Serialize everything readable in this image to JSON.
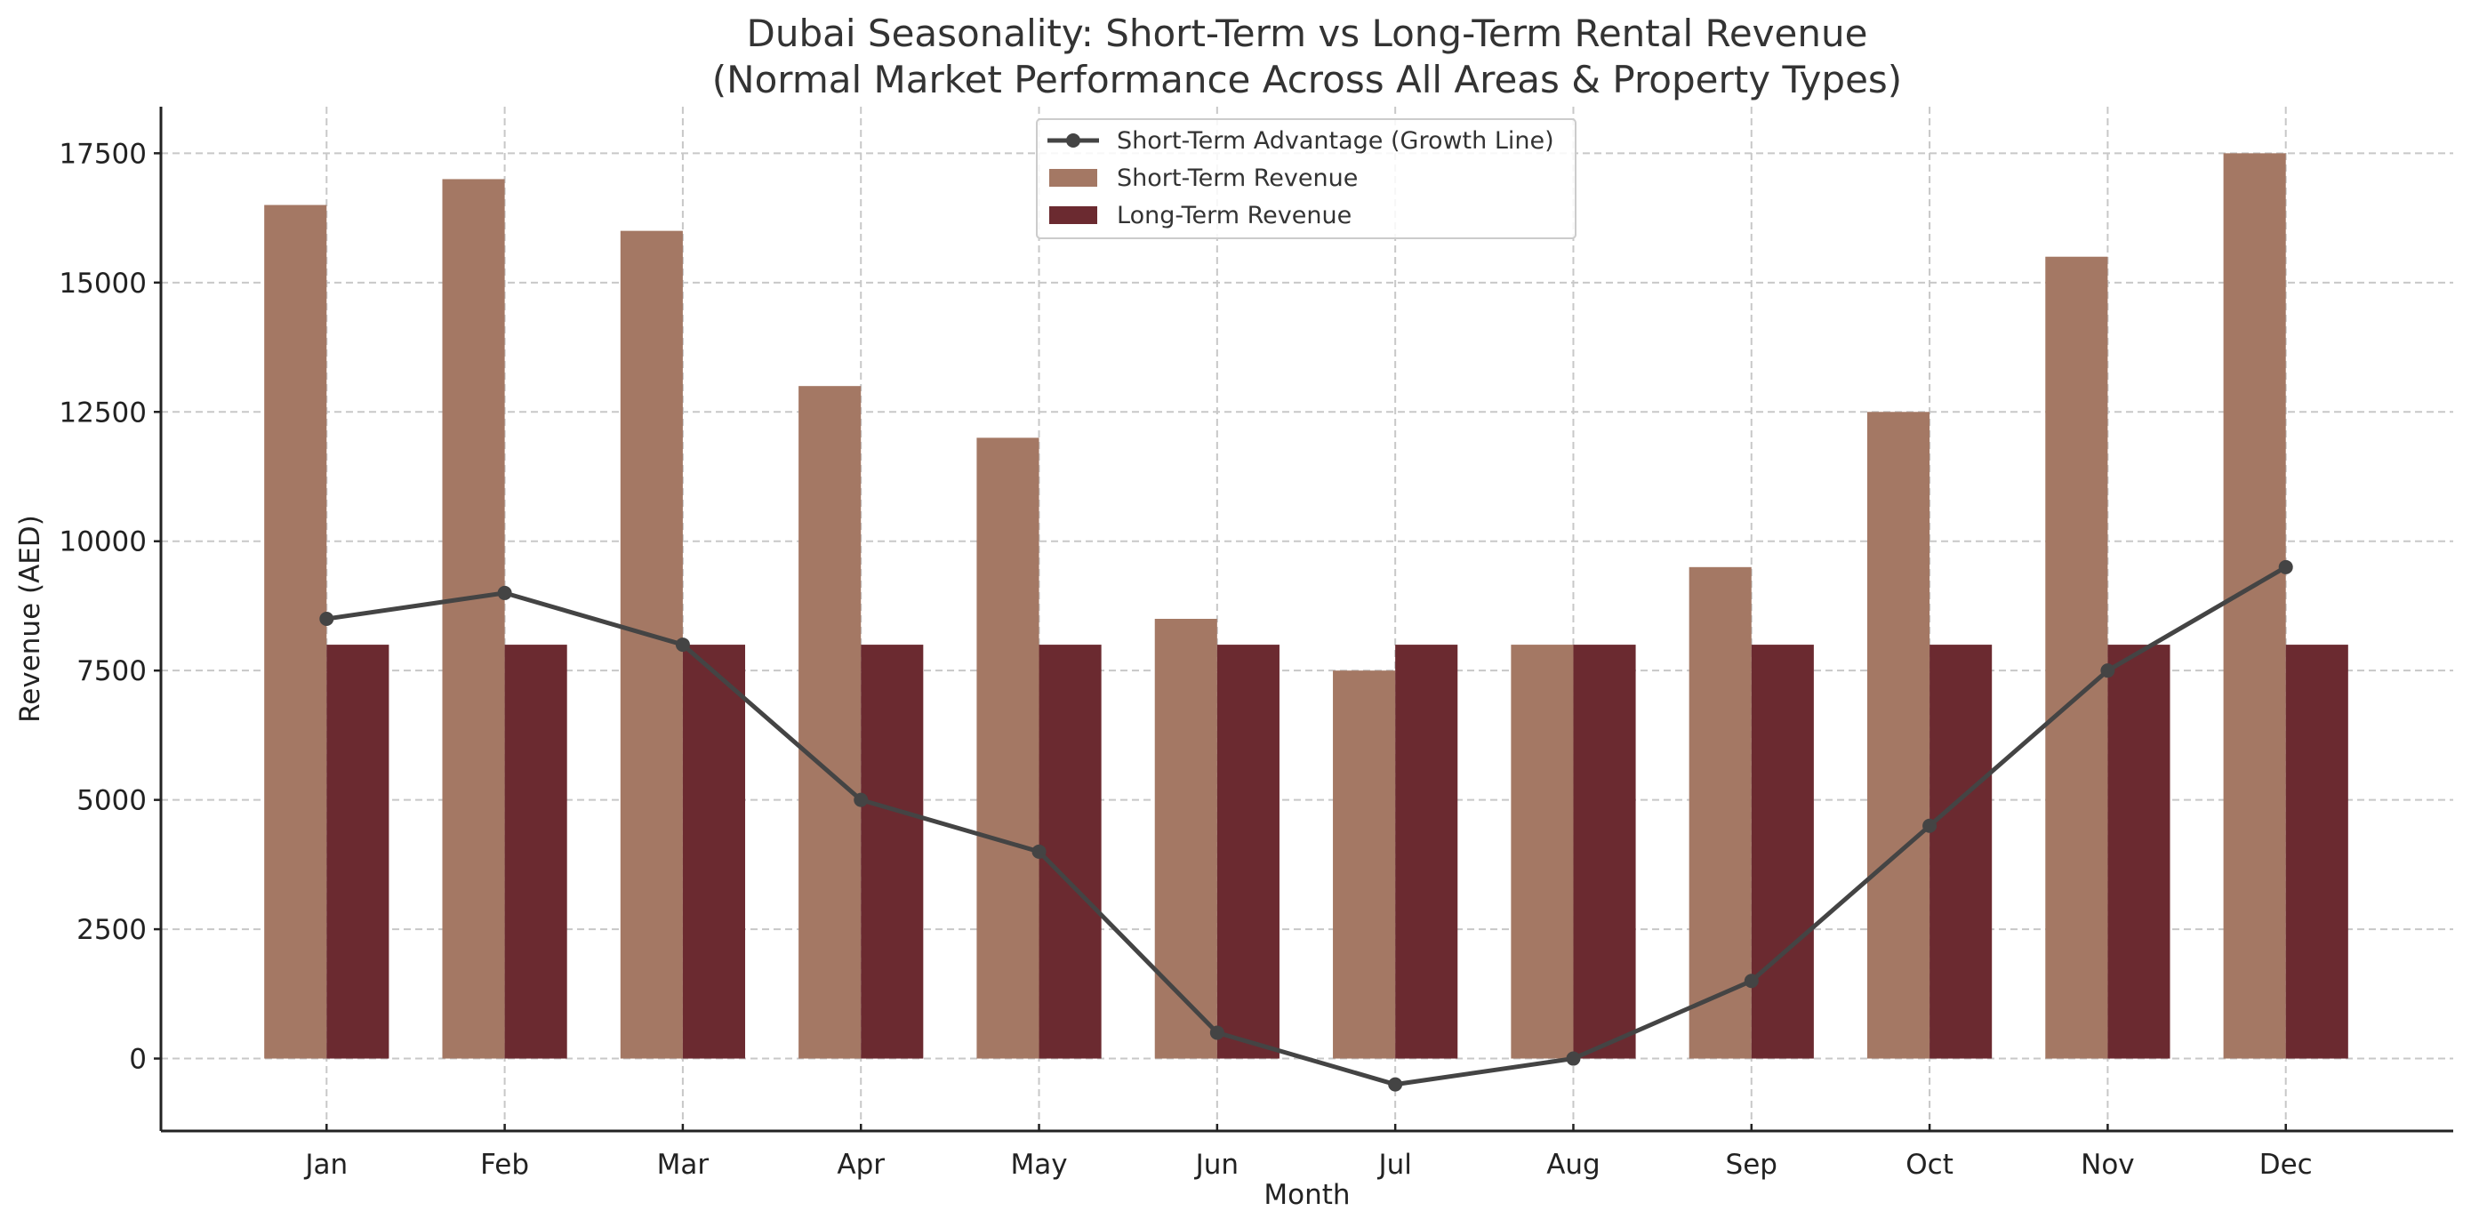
{
  "chart_data": {
    "type": "bar",
    "title_line1": "Dubai Seasonality: Short-Term vs Long-Term Rental Revenue",
    "title_line2": "(Normal Market Performance Across All Areas & Property Types)",
    "xlabel": "Month",
    "ylabel": "Revenue (AED)",
    "categories": [
      "Jan",
      "Feb",
      "Mar",
      "Apr",
      "May",
      "Jun",
      "Jul",
      "Aug",
      "Sep",
      "Oct",
      "Nov",
      "Dec"
    ],
    "ylim": [
      -1400,
      18400
    ],
    "yticks": [
      0,
      2500,
      5000,
      7500,
      10000,
      12500,
      15000,
      17500
    ],
    "grid": true,
    "legend_position": "top-center",
    "series": [
      {
        "name": "Short-Term Revenue",
        "kind": "bar",
        "color": "#a47864",
        "values": [
          16500,
          17000,
          16000,
          13000,
          12000,
          8500,
          7500,
          8000,
          9500,
          12500,
          15500,
          17500
        ]
      },
      {
        "name": "Long-Term Revenue",
        "kind": "bar",
        "color": "#6b2a30",
        "values": [
          8000,
          8000,
          8000,
          8000,
          8000,
          8000,
          8000,
          8000,
          8000,
          8000,
          8000,
          8000
        ]
      },
      {
        "name": "Short-Term Advantage (Growth Line)",
        "kind": "line",
        "color": "#444444",
        "values": [
          8500,
          9000,
          8000,
          5000,
          4000,
          500,
          -500,
          0,
          1500,
          4500,
          7500,
          9500
        ]
      }
    ],
    "legend_order": [
      2,
      0,
      1
    ]
  }
}
